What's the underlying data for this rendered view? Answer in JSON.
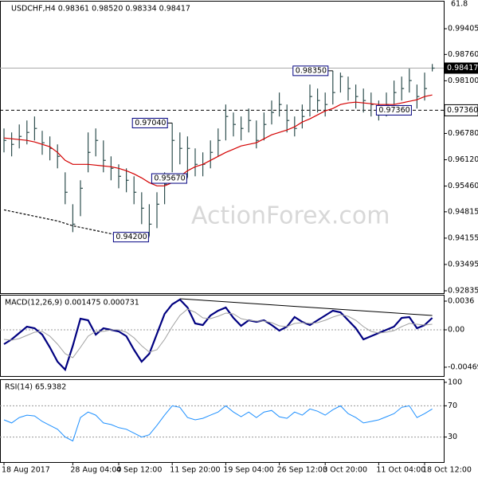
{
  "chart_data": [
    {
      "type": "ohlc",
      "title": "USDCHF,H4  0.98361 0.98520 0.98334 0.98417",
      "top_note": "61.8",
      "color": "#2f4f4f",
      "high": [
        0.96905,
        0.96805,
        0.97005,
        0.97105,
        0.97205,
        0.96845,
        0.96705,
        0.96505,
        0.95805,
        0.95005,
        0.95605,
        0.96805,
        0.96905,
        0.96605,
        0.96205,
        0.96005,
        0.95905,
        0.95705,
        0.95305,
        0.95005,
        0.95305,
        0.95805,
        0.9704,
        0.96805,
        0.96705,
        0.96405,
        0.96305,
        0.96605,
        0.96905,
        0.97505,
        0.97305,
        0.97205,
        0.97405,
        0.97105,
        0.97305,
        0.97605,
        0.97805,
        0.97505,
        0.97205,
        0.97505,
        0.98005,
        0.97905,
        0.97805,
        0.9835,
        0.98305,
        0.98205,
        0.98005,
        0.97905,
        0.97805,
        0.97605,
        0.97805,
        0.98105,
        0.98205,
        0.98405,
        0.98005,
        0.98305,
        0.9852
      ],
      "low": [
        0.96305,
        0.96205,
        0.96405,
        0.96505,
        0.96605,
        0.96245,
        0.96105,
        0.95905,
        0.95005,
        0.94305,
        0.94705,
        0.95805,
        0.96205,
        0.95805,
        0.95605,
        0.95405,
        0.95305,
        0.95005,
        0.94505,
        0.942,
        0.94405,
        0.95005,
        0.95805,
        0.96005,
        0.9567,
        0.95705,
        0.95705,
        0.95905,
        0.96205,
        0.96605,
        0.96705,
        0.96605,
        0.96805,
        0.96405,
        0.96605,
        0.97005,
        0.97205,
        0.96805,
        0.96705,
        0.96905,
        0.97205,
        0.97305,
        0.97205,
        0.97505,
        0.97805,
        0.97605,
        0.97405,
        0.97305,
        0.97205,
        0.97105,
        0.97205,
        0.97505,
        0.97605,
        0.97805,
        0.97405,
        0.97605,
        0.98334
      ],
      "close": [
        0.96605,
        0.96505,
        0.96705,
        0.96805,
        0.96905,
        0.96545,
        0.96405,
        0.96205,
        0.95305,
        0.94505,
        0.95405,
        0.96305,
        0.96605,
        0.96105,
        0.95905,
        0.95705,
        0.95605,
        0.95305,
        0.94905,
        0.94505,
        0.95005,
        0.95505,
        0.96605,
        0.96405,
        0.96405,
        0.96005,
        0.96005,
        0.96305,
        0.96605,
        0.97205,
        0.97005,
        0.96905,
        0.97105,
        0.96605,
        0.97005,
        0.97305,
        0.97505,
        0.97105,
        0.96905,
        0.97205,
        0.97705,
        0.97605,
        0.97505,
        0.97805,
        0.98205,
        0.97905,
        0.97705,
        0.97605,
        0.97505,
        0.97305,
        0.97505,
        0.97805,
        0.97905,
        0.98105,
        0.97705,
        0.97905,
        0.98417
      ],
      "overlays": [
        {
          "color": "#d40000",
          "values": [
            0.96665,
            0.96645,
            0.96625,
            0.96605,
            0.96565,
            0.96505,
            0.96445,
            0.96305,
            0.96105,
            0.96005,
            0.96005,
            0.96005,
            0.95985,
            0.95965,
            0.95945,
            0.95905,
            0.95845,
            0.95765,
            0.95665,
            0.95545,
            0.95465,
            0.95465,
            0.95545,
            0.95705,
            0.95845,
            0.95945,
            0.96005,
            0.96105,
            0.96205,
            0.96305,
            0.96385,
            0.96465,
            0.96505,
            0.96545,
            0.96645,
            0.96745,
            0.96805,
            0.96865,
            0.96945,
            0.97065,
            0.97145,
            0.97245,
            0.97345,
            0.97405,
            0.97505,
            0.97545,
            0.97565,
            0.97545,
            0.97525,
            0.97505,
            0.97505,
            0.97505,
            0.97545,
            0.97585,
            0.97625,
            0.97705,
            0.97745
          ]
        },
        {
          "color": "#000000",
          "dashed": true,
          "values": [
            0.94865,
            0.94825,
            0.94785,
            0.94745,
            0.94705,
            0.94665,
            0.94625,
            0.94585,
            0.94525,
            0.94465,
            0.94425,
            0.94385,
            0.94345,
            0.94305,
            0.94265,
            0.94225,
            0.94185,
            0.94165,
            null,
            null,
            null,
            null,
            null,
            null,
            null,
            null,
            null,
            null,
            null,
            null,
            null,
            null,
            null,
            null,
            null,
            null,
            null,
            null,
            null,
            null,
            null,
            null,
            null,
            null,
            null,
            null,
            null,
            null,
            null,
            null,
            null,
            null,
            null,
            null,
            null,
            null,
            null
          ]
        }
      ],
      "annotations": [
        {
          "value": 0.9835,
          "label": "0.98350"
        },
        {
          "value": 0.9704,
          "label": "0.97040"
        },
        {
          "value": 0.9567,
          "label": "0.95670"
        },
        {
          "value": 0.942,
          "label": "0.94200"
        }
      ],
      "level": {
        "value": 0.9736,
        "label": "0.97360"
      },
      "last": {
        "value": 0.98417,
        "label": "0.98417"
      },
      "ylim": [
        0.92775,
        1.00105
      ],
      "yticks": [
        0.99405,
        {
          "value": 0.9876,
          "label": "0.98760"
        },
        {
          "value": 0.981,
          "label": "0.98100"
        },
        {
          "value": 0.9678,
          "label": "0.96780"
        },
        {
          "value": 0.9612,
          "label": "0.96120"
        },
        {
          "value": 0.9546,
          "label": "0.95460"
        },
        0.94815,
        0.94155,
        0.93495,
        0.92835
      ]
    },
    {
      "type": "line",
      "title": "MACD(12,26,9) 0.001475 0.000731",
      "series": [
        {
          "color": "#000080",
          "width": 2.2,
          "values": [
            -0.0018,
            -0.0012,
            -0.0004,
            0.0004,
            0.0002,
            -0.0006,
            -0.0022,
            -0.004,
            -0.005,
            -0.002,
            0.0014,
            0.0012,
            -0.0006,
            0.0002,
            0.0,
            -0.0002,
            -0.0008,
            -0.0025,
            -0.004,
            -0.003,
            -0.0005,
            0.002,
            0.0032,
            0.0038,
            0.0028,
            0.0008,
            0.0006,
            0.0018,
            0.0024,
            0.0028,
            0.0015,
            0.0005,
            0.0012,
            0.001,
            0.0012,
            0.0006,
            -0.0001,
            0.0004,
            0.0016,
            0.001,
            0.0006,
            0.0012,
            0.0018,
            0.0024,
            0.0022,
            0.0012,
            0.0002,
            -0.0012,
            -0.0008,
            -0.0004,
            0.0,
            0.0004,
            0.0015,
            0.0016,
            0.0002,
            0.0006,
            0.0015
          ]
        },
        {
          "color": "#a0a0a0",
          "width": 1,
          "values": [
            -0.0012,
            -0.0013,
            -0.0011,
            -0.0007,
            -0.0003,
            -0.0002,
            -0.0008,
            -0.0018,
            -0.003,
            -0.0035,
            -0.0022,
            -0.0008,
            -0.0002,
            -0.0002,
            0.0,
            0.0,
            -0.0003,
            -0.001,
            -0.002,
            -0.0028,
            -0.0025,
            -0.0012,
            0.0004,
            0.0018,
            0.0026,
            0.0022,
            0.0015,
            0.0014,
            0.0017,
            0.0021,
            0.002,
            0.0014,
            0.0012,
            0.0011,
            0.0011,
            0.0009,
            0.0005,
            0.0004,
            0.0008,
            0.0009,
            0.0008,
            0.0009,
            0.0012,
            0.0016,
            0.0019,
            0.0017,
            0.0012,
            0.0004,
            -0.0002,
            -0.0004,
            -0.0003,
            -0.0001,
            0.0004,
            0.0008,
            0.0007,
            0.0006,
            0.0007
          ]
        }
      ],
      "trendline": {
        "x": [
          23,
          56
        ],
        "values": [
          0.0039,
          0.0018
        ]
      },
      "ylim": [
        -0.0058,
        0.0044
      ],
      "yticks": [
        0.0036,
        {
          "value": 0,
          "label": "0.00"
        },
        -0.004696
      ],
      "dashed_levels": [
        0
      ]
    },
    {
      "type": "line",
      "title": "RSI(14) 65.9382",
      "series": [
        {
          "color": "#1e90ff",
          "width": 1,
          "values": [
            52,
            48,
            55,
            58,
            57,
            50,
            45,
            40,
            30,
            25,
            55,
            62,
            58,
            48,
            46,
            42,
            40,
            35,
            30,
            33,
            45,
            58,
            70,
            68,
            55,
            52,
            54,
            58,
            62,
            70,
            62,
            56,
            62,
            55,
            62,
            64,
            56,
            54,
            62,
            58,
            66,
            63,
            58,
            65,
            70,
            60,
            55,
            48,
            50,
            52,
            56,
            60,
            68,
            70,
            55,
            60,
            66
          ]
        }
      ],
      "ylim": [
        -2,
        104
      ],
      "yticks": [
        100,
        70,
        30
      ],
      "dashed_levels": [
        70,
        30
      ],
      "xticks": [
        {
          "value": 0,
          "label": "18 Aug 2017"
        },
        {
          "value": 9,
          "label": "28 Aug 04:00"
        },
        {
          "value": 15,
          "label": "4 Sep 12:00"
        },
        {
          "value": 22,
          "label": "11 Sep 20:00"
        },
        {
          "value": 29,
          "label": "19 Sep 04:00"
        },
        {
          "value": 36,
          "label": "26 Sep 12:00"
        },
        {
          "value": 42,
          "label": "3 Oct 20:00"
        },
        {
          "value": 49,
          "label": "11 Oct 04:00"
        },
        {
          "value": 55,
          "label": "18 Oct 12:00"
        }
      ]
    }
  ]
}
